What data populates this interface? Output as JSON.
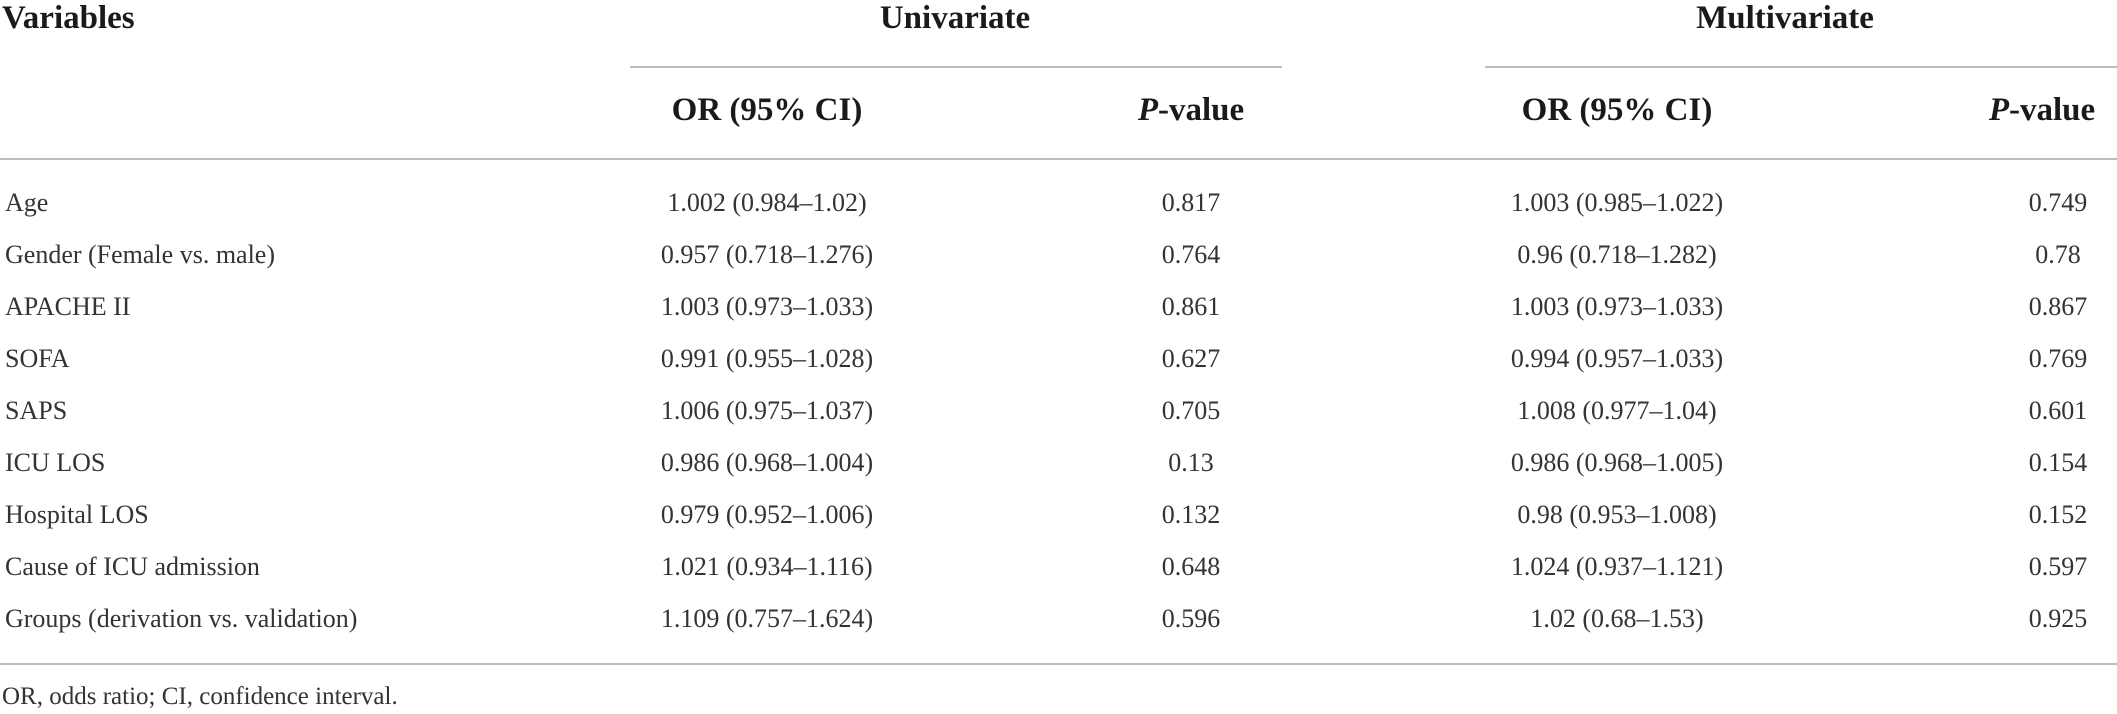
{
  "table": {
    "header": {
      "variables": "Variables",
      "univariate": "Univariate",
      "multivariate": "Multivariate",
      "or_ci": "OR (95% CI)",
      "p_prefix": "P",
      "p_suffix": "-value"
    },
    "rows": [
      {
        "variable": "Age",
        "uni_or": "1.002 (0.984–1.02)",
        "uni_p": "0.817",
        "multi_or": "1.003 (0.985–1.022)",
        "multi_p": "0.749"
      },
      {
        "variable": "Gender (Female vs. male)",
        "uni_or": "0.957 (0.718–1.276)",
        "uni_p": "0.764",
        "multi_or": "0.96 (0.718–1.282)",
        "multi_p": "0.78"
      },
      {
        "variable": "APACHE II",
        "uni_or": "1.003 (0.973–1.033)",
        "uni_p": "0.861",
        "multi_or": "1.003 (0.973–1.033)",
        "multi_p": "0.867"
      },
      {
        "variable": "SOFA",
        "uni_or": "0.991 (0.955–1.028)",
        "uni_p": "0.627",
        "multi_or": "0.994 (0.957–1.033)",
        "multi_p": "0.769"
      },
      {
        "variable": "SAPS",
        "uni_or": "1.006 (0.975–1.037)",
        "uni_p": "0.705",
        "multi_or": "1.008 (0.977–1.04)",
        "multi_p": "0.601"
      },
      {
        "variable": "ICU LOS",
        "uni_or": "0.986 (0.968–1.004)",
        "uni_p": "0.13",
        "multi_or": "0.986 (0.968–1.005)",
        "multi_p": "0.154"
      },
      {
        "variable": "Hospital LOS",
        "uni_or": "0.979 (0.952–1.006)",
        "uni_p": "0.132",
        "multi_or": "0.98 (0.953–1.008)",
        "multi_p": "0.152"
      },
      {
        "variable": "Cause of ICU admission",
        "uni_or": "1.021 (0.934–1.116)",
        "uni_p": "0.648",
        "multi_or": "1.024 (0.937–1.121)",
        "multi_p": "0.597"
      },
      {
        "variable": "Groups (derivation vs. validation)",
        "uni_or": "1.109 (0.757–1.624)",
        "uni_p": "0.596",
        "multi_or": "1.02 (0.68–1.53)",
        "multi_p": "0.925"
      }
    ],
    "footnote": "OR, odds ratio; CI, confidence interval."
  }
}
